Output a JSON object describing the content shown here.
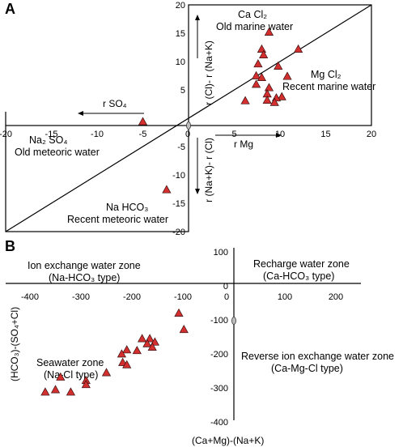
{
  "chart_data": [
    {
      "panel": "A",
      "type": "scatter",
      "x_min": -20,
      "x_max": 20,
      "y_min": -20,
      "y_max": 20,
      "x_ticks": [
        "-20",
        "-15",
        "-10",
        "-5",
        "0",
        "5",
        "10",
        "15",
        "20"
      ],
      "y_ticks": [
        "20",
        "15",
        "10",
        "5",
        "-5",
        "-10",
        "-15",
        "-20"
      ],
      "xlabel_pos": "r Mg",
      "xlabel_neg": "r SO₄",
      "ylabel_pos": "r (Cl)- r (Na+K)",
      "ylabel_neg": "r (Na+K)- r (Cl)",
      "quadrants": {
        "q1_top": [
          "Ca Cl₂",
          "Old marine water"
        ],
        "q1_bottom": [
          "Mg Cl₂",
          "Recent marine water"
        ],
        "q2": [
          "Na₂ SO₄",
          "Old meteoric water"
        ],
        "q3": [
          "Na HCO₃",
          "Recent meteoric water"
        ]
      },
      "points": [
        [
          8.8,
          15.2
        ],
        [
          8.0,
          12.2
        ],
        [
          8.2,
          11.2
        ],
        [
          12.0,
          12.2
        ],
        [
          7.6,
          9.6
        ],
        [
          9.8,
          9.2
        ],
        [
          7.4,
          7.5
        ],
        [
          8.0,
          7.2
        ],
        [
          10.8,
          7.4
        ],
        [
          7.4,
          6.0
        ],
        [
          8.8,
          5.4
        ],
        [
          8.6,
          4.3
        ],
        [
          10.2,
          3.8
        ],
        [
          9.6,
          3.6
        ],
        [
          8.6,
          3.2
        ],
        [
          9.4,
          2.8
        ],
        [
          6.2,
          3.1
        ],
        [
          -5.0,
          -0.6
        ],
        [
          -2.4,
          -12.6
        ]
      ]
    },
    {
      "panel": "B",
      "type": "scatter",
      "x_min": -400,
      "x_max": 200,
      "y_min": -400,
      "y_max": 100,
      "x_ticks": [
        "-400",
        "-300",
        "-200",
        "-100",
        "0",
        "100",
        "200"
      ],
      "y_ticks": [
        "100",
        "0",
        "-100",
        "-200",
        "-300",
        "-400"
      ],
      "xlabel": "(Ca+Mg)-(Na+K)",
      "ylabel": "(HCO₃)-(SO₄+Cl)",
      "zones": {
        "top_left": [
          "Ion exchange water zone",
          "(Na-HCO₃ type)"
        ],
        "top_right": [
          "Recharge water zone",
          "(Ca-HCO₃ type)"
        ],
        "bottom_left": [
          "Seawater zone",
          "(Na-Cl type)"
        ],
        "bottom_right": [
          "Reverse ion exchange water zone",
          "(Ca-Mg-Cl type)"
        ]
      },
      "points": [
        [
          -108,
          -80
        ],
        [
          -98,
          -128
        ],
        [
          -180,
          -155
        ],
        [
          -165,
          -155
        ],
        [
          -155,
          -165
        ],
        [
          -170,
          -170
        ],
        [
          -160,
          -180
        ],
        [
          -190,
          -190
        ],
        [
          -210,
          -188
        ],
        [
          -220,
          -200
        ],
        [
          -218,
          -225
        ],
        [
          -210,
          -232
        ],
        [
          -250,
          -255
        ],
        [
          -290,
          -278
        ],
        [
          -290,
          -290
        ],
        [
          -340,
          -268
        ],
        [
          -350,
          -305
        ],
        [
          -320,
          -312
        ],
        [
          -370,
          -312
        ]
      ]
    }
  ]
}
